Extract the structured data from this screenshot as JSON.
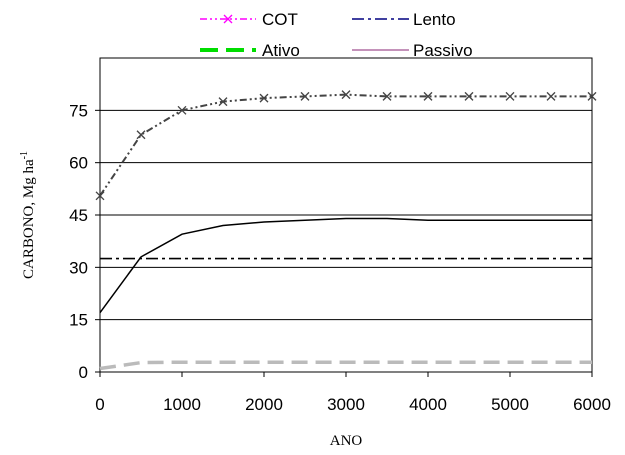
{
  "chart_data": {
    "type": "line",
    "title": "",
    "xlabel": "ANO",
    "ylabel_main": "CARBONO, Mg ha",
    "ylabel_sup": "-1",
    "xlim": [
      0,
      6000
    ],
    "ylim": [
      0,
      90
    ],
    "xticks": [
      0,
      1000,
      2000,
      3000,
      4000,
      5000,
      6000
    ],
    "yticks": [
      0,
      15,
      30,
      45,
      60,
      75
    ],
    "xtick_labels": [
      "0",
      "1000",
      "2000",
      "3000",
      "4000",
      "5000",
      "6000"
    ],
    "ytick_labels": [
      "0",
      "15",
      "30",
      "45",
      "60",
      "75"
    ],
    "grid": "horizontal",
    "legend_position": "top",
    "series": [
      {
        "name": "COT",
        "legend_color": "#ff00ff",
        "plot_color": "#444444",
        "dash": "dash-dot-dot",
        "marker": "x",
        "x": [
          0,
          500,
          1000,
          1500,
          2000,
          2500,
          3000,
          3500,
          4000,
          4500,
          5000,
          5500,
          6000
        ],
        "y": [
          50.5,
          68,
          75,
          77.5,
          78.5,
          79,
          79.5,
          79,
          79,
          79,
          79,
          79,
          79
        ]
      },
      {
        "name": "Lento",
        "legend_color": "#000080",
        "plot_color": "#000000",
        "dash": "dash-dot",
        "marker": "none",
        "x": [
          0,
          500,
          1000,
          1500,
          2000,
          2500,
          3000,
          3500,
          4000,
          4500,
          5000,
          5500,
          6000
        ],
        "y": [
          32.5,
          32.5,
          32.5,
          32.5,
          32.5,
          32.5,
          32.5,
          32.5,
          32.5,
          32.5,
          32.5,
          32.5,
          32.5
        ]
      },
      {
        "name": "Ativo",
        "legend_color": "#00dd00",
        "plot_color": "#bbbbbb",
        "dash": "long-dash",
        "marker": "none",
        "x": [
          0,
          500,
          1000,
          1500,
          2000,
          2500,
          3000,
          3500,
          4000,
          4500,
          5000,
          5500,
          6000
        ],
        "y": [
          1,
          2.7,
          2.8,
          2.8,
          2.8,
          2.8,
          2.8,
          2.8,
          2.8,
          2.8,
          2.8,
          2.8,
          2.8
        ]
      },
      {
        "name": "Passivo",
        "legend_color": "#a05090",
        "plot_color": "#000000",
        "dash": "solid",
        "marker": "none",
        "x": [
          0,
          500,
          1000,
          1500,
          2000,
          2500,
          3000,
          3500,
          4000,
          4500,
          5000,
          5500,
          6000
        ],
        "y": [
          17,
          33,
          39.5,
          42,
          43,
          43.5,
          44,
          44,
          43.5,
          43.5,
          43.5,
          43.5,
          43.5
        ]
      }
    ]
  }
}
